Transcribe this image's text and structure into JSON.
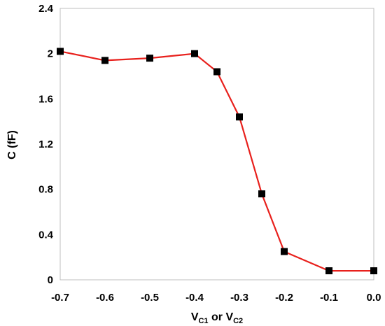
{
  "chart_data": {
    "type": "line",
    "title": "",
    "xlabel": {
      "parts": [
        {
          "text": "V",
          "sub": false
        },
        {
          "text": "C1",
          "sub": true
        },
        {
          "text": " or V",
          "sub": false
        },
        {
          "text": "C2",
          "sub": true
        }
      ]
    },
    "ylabel": "C (fF)",
    "xlim": [
      -0.7,
      0.0
    ],
    "ylim": [
      0,
      2.4
    ],
    "xticks": [
      "-0.7",
      "-0.6",
      "-0.5",
      "-0.4",
      "-0.3",
      "-0.2",
      "-0.1",
      "0.0"
    ],
    "yticks": [
      "0",
      "0.4",
      "0.8",
      "1.2",
      "1.6",
      "2",
      "2.4"
    ],
    "grid": false,
    "legend": "none",
    "series": [
      {
        "line_color": "#e8201c",
        "marker_color": "#000000",
        "marker": "square",
        "x": [
          -0.7,
          -0.6,
          -0.5,
          -0.4,
          -0.35,
          -0.3,
          -0.25,
          -0.2,
          -0.1,
          0.0
        ],
        "y": [
          2.02,
          1.94,
          1.96,
          2.0,
          1.84,
          1.44,
          0.76,
          0.25,
          0.08,
          0.08
        ]
      }
    ]
  }
}
